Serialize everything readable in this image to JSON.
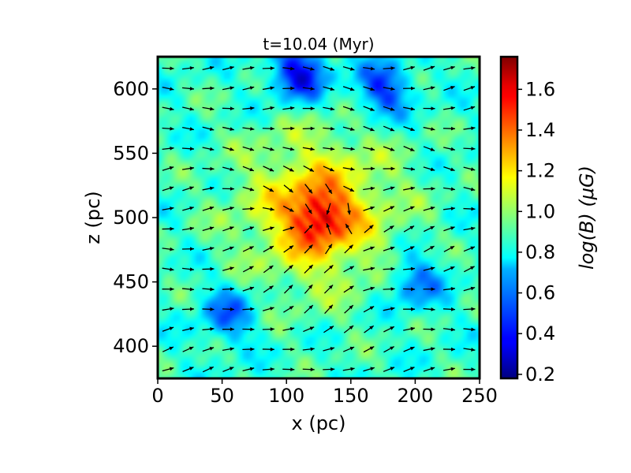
{
  "chart_data": {
    "type": "heatmap",
    "title": "t=10.04 (Myr)",
    "xlabel": "x (pc)",
    "ylabel": "z (pc)",
    "xlim": [
      0,
      250
    ],
    "ylim": [
      375,
      625
    ],
    "xticks": [
      0,
      50,
      100,
      150,
      200,
      250
    ],
    "yticks": [
      400,
      450,
      500,
      550,
      600
    ],
    "colorbar": {
      "label": "log(B) (μG)",
      "range": [
        0.18,
        1.76
      ],
      "ticks": [
        0.2,
        0.4,
        0.6,
        0.8,
        1.0,
        1.2,
        1.4,
        1.6
      ],
      "tick_labels": [
        "0.2",
        "0.4",
        "0.6",
        "0.8",
        "1.0",
        "1.2",
        "1.4",
        "1.6"
      ],
      "colormap": "jet"
    },
    "field_features": {
      "background_level": 0.85,
      "peak": {
        "x": 125,
        "z": 500,
        "value": 1.65,
        "extent_pc": 28
      },
      "warm_halo": {
        "x": 125,
        "z": 505,
        "value": 1.25,
        "extent_pc": 60
      },
      "low_regions": [
        {
          "x": 110,
          "z": 612,
          "value": 0.35
        },
        {
          "x": 175,
          "z": 600,
          "value": 0.45
        },
        {
          "x": 200,
          "z": 450,
          "value": 0.55
        },
        {
          "x": 55,
          "z": 425,
          "value": 0.55
        }
      ]
    },
    "vector_field": {
      "description": "magnetic field direction arrows, mostly pointing +x with convergence toward x=125, z=500",
      "spacing_pc": 15.6,
      "color": "#000000"
    }
  }
}
